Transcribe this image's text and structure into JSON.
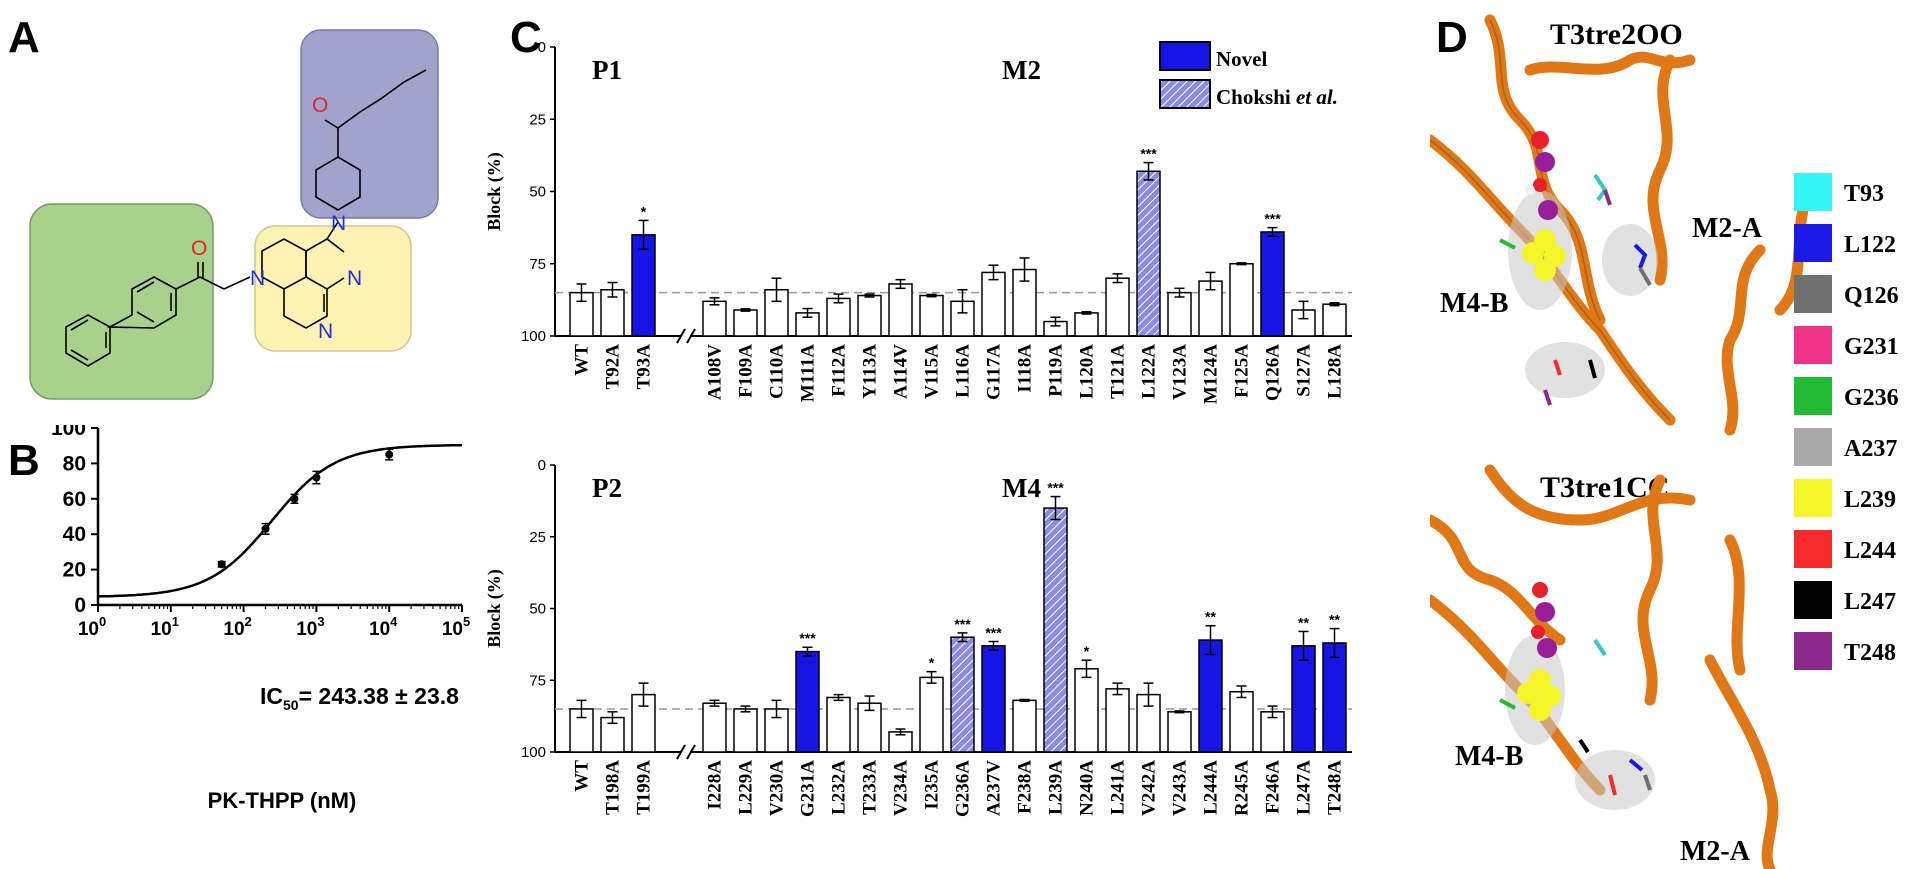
{
  "panels": {
    "a": "A",
    "b": "B",
    "c": "C",
    "d": "D"
  },
  "colors": {
    "novel": "#1515e6",
    "chokshi": "#8a8ae8",
    "ribbon": "#e07818",
    "green_box": "#a9d18e",
    "yellow_box": "#fff2b3",
    "purple_box": "#a0a3cc",
    "atom_o": "#e8202a",
    "atom_n": "#2030d8"
  },
  "molecule": {
    "atom_o1": "O",
    "atom_o2": "O",
    "atom_n1": "N",
    "atom_n2": "N",
    "atom_n3": "N",
    "atom_n4": "N"
  },
  "chart_data": [
    {
      "type": "line",
      "panel": "B",
      "xlabel": "PK-THPP (nM)",
      "ylabel": "",
      "x_scale": "log",
      "xlim": [
        1,
        100000
      ],
      "ylim": [
        0,
        100
      ],
      "x_ticks": [
        {
          "base": "10",
          "exp": "0"
        },
        {
          "base": "10",
          "exp": "1"
        },
        {
          "base": "10",
          "exp": "2"
        },
        {
          "base": "10",
          "exp": "3"
        },
        {
          "base": "10",
          "exp": "4"
        },
        {
          "base": "10",
          "exp": "5"
        }
      ],
      "y_ticks": [
        "0",
        "20",
        "40",
        "60",
        "80",
        "100"
      ],
      "annotation": {
        "prefix": "IC",
        "sub": "50",
        "suffix": "= 243.38 ± 23.8"
      },
      "points": [
        {
          "x": 50,
          "y": 23,
          "err": 1.5
        },
        {
          "x": 200,
          "y": 43,
          "err": 3
        },
        {
          "x": 500,
          "y": 60,
          "err": 2.5
        },
        {
          "x": 1000,
          "y": 72,
          "err": 3.5
        },
        {
          "x": 10000,
          "y": 85,
          "err": 3
        }
      ],
      "fit": {
        "bottom": 4.5,
        "top": 90.5,
        "ic50": 243.38,
        "hill": 1
      }
    },
    {
      "type": "bar",
      "panel": "C-top",
      "ylabel": "Block (%)",
      "ylim": [
        0,
        100
      ],
      "inverted_y": true,
      "y_ticks": [
        "0",
        "25",
        "50",
        "75",
        "100"
      ],
      "reference_line": 85,
      "region_labels": [
        "P1",
        "M2"
      ],
      "categories": [
        "WT",
        "T92A",
        "T93A",
        "A108V",
        "F109A",
        "C110A",
        "M111A",
        "F112A",
        "Y113A",
        "A114V",
        "V115A",
        "L116A",
        "G117A",
        "I118A",
        "P119A",
        "L120A",
        "T121A",
        "L122A",
        "V123A",
        "M124A",
        "F125A",
        "Q126A",
        "S127A",
        "L128A"
      ],
      "values": [
        85,
        84,
        65,
        88,
        91,
        84,
        92,
        87,
        86,
        82,
        86,
        88,
        78,
        77,
        95,
        92,
        80,
        43,
        85,
        81,
        75,
        64,
        91,
        89
      ],
      "errors": [
        3,
        2.5,
        5,
        1.2,
        0.4,
        4,
        1.5,
        1.5,
        0.5,
        1.5,
        0.4,
        4,
        2.5,
        4,
        1.5,
        0.4,
        1.5,
        3,
        1.5,
        3,
        0.3,
        1.5,
        3,
        0.5
      ],
      "kinds": [
        "open",
        "open",
        "novel",
        "open",
        "open",
        "open",
        "open",
        "open",
        "open",
        "open",
        "open",
        "open",
        "open",
        "open",
        "open",
        "open",
        "open",
        "chokshi",
        "open",
        "open",
        "open",
        "novel",
        "open",
        "open"
      ],
      "significance": [
        "",
        "",
        "*",
        "",
        "",
        "",
        "",
        "",
        "",
        "",
        "",
        "",
        "",
        "",
        "",
        "",
        "",
        "***",
        "",
        "",
        "",
        "***",
        "",
        ""
      ],
      "legend": {
        "novel": "Novel",
        "chokshi": "Chokshi",
        "chokshi_suffix": "et al."
      }
    },
    {
      "type": "bar",
      "panel": "C-bottom",
      "ylabel": "Block (%)",
      "ylim": [
        0,
        100
      ],
      "inverted_y": true,
      "y_ticks": [
        "0",
        "25",
        "50",
        "75",
        "100"
      ],
      "reference_line": 85,
      "region_labels": [
        "P2",
        "M4"
      ],
      "categories": [
        "WT",
        "T198A",
        "T199A",
        "I228A",
        "L229A",
        "V230A",
        "G231A",
        "L232A",
        "T233A",
        "V234A",
        "I235A",
        "G236A",
        "A237V",
        "F238A",
        "L239A",
        "N240A",
        "L241A",
        "V242A",
        "V243A",
        "L244A",
        "R245A",
        "F246A",
        "L247A",
        "T248A"
      ],
      "values": [
        85,
        88,
        80,
        83,
        85,
        85,
        65,
        81,
        83,
        93,
        74,
        60,
        63,
        82,
        15,
        71,
        78,
        80,
        86,
        61,
        79,
        86,
        63,
        62
      ],
      "errors": [
        3,
        2,
        4,
        1,
        1,
        3,
        1.5,
        1,
        2.5,
        1,
        2,
        1.5,
        1.5,
        0.3,
        4,
        3,
        2,
        4,
        0.3,
        5,
        2,
        2,
        5,
        5
      ],
      "kinds": [
        "open",
        "open",
        "open",
        "open",
        "open",
        "open",
        "novel",
        "open",
        "open",
        "open",
        "open",
        "chokshi",
        "novel",
        "open",
        "chokshi",
        "open",
        "open",
        "open",
        "open",
        "novel",
        "open",
        "open",
        "novel",
        "novel"
      ],
      "significance": [
        "",
        "",
        "",
        "",
        "",
        "",
        "***",
        "",
        "",
        "",
        "*",
        "***",
        "***",
        "",
        "***",
        "*",
        "",
        "",
        "",
        "**",
        "",
        "",
        "**",
        "**"
      ]
    }
  ],
  "structures": {
    "top_title": "T3tre2OO",
    "bottom_title": "T3tre1CC",
    "top_labels": {
      "m2": "M2-A",
      "m4": "M4-B"
    },
    "bottom_labels": {
      "m2": "M2-A",
      "m4": "M4-B"
    }
  },
  "residue_legend": [
    {
      "label": "T93",
      "color": "#33f5f5"
    },
    {
      "label": "L122",
      "color": "#1a1ae6"
    },
    {
      "label": "Q126",
      "color": "#707070"
    },
    {
      "label": "G231",
      "color": "#f0338a"
    },
    {
      "label": "G236",
      "color": "#22bb33"
    },
    {
      "label": "A237",
      "color": "#a8a8a8"
    },
    {
      "label": "L239",
      "color": "#f5f52a"
    },
    {
      "label": "L244",
      "color": "#f52a2a"
    },
    {
      "label": "L247",
      "color": "#000000"
    },
    {
      "label": "T248",
      "color": "#8a2a8a"
    }
  ]
}
